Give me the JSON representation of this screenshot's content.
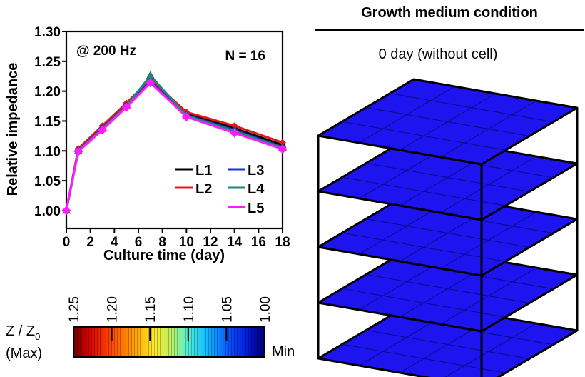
{
  "chart_data": [
    {
      "type": "line",
      "ylabel": "Relative impedance",
      "xlabel": "Culture time (day)",
      "annotations": [
        "@ 200 Hz",
        "N = 16"
      ],
      "x": [
        0,
        1,
        3,
        5,
        7,
        10,
        14,
        18
      ],
      "xticks": [
        "0",
        "2",
        "4",
        "6",
        "8",
        "10",
        "12",
        "14",
        "16",
        "18"
      ],
      "xlim": [
        0,
        18
      ],
      "yticks": [
        "1.00",
        "1.05",
        "1.10",
        "1.15",
        "1.20",
        "1.25",
        "1.30"
      ],
      "ylim": [
        0.97,
        1.3
      ],
      "grid": false,
      "legend_position": "bottom-right",
      "series": [
        {
          "name": "L1",
          "color": "#000000",
          "values": [
            1.0,
            1.103,
            1.14,
            1.178,
            1.218,
            1.163,
            1.138,
            1.11
          ]
        },
        {
          "name": "L2",
          "color": "#e8141c",
          "values": [
            1.0,
            1.104,
            1.142,
            1.18,
            1.22,
            1.165,
            1.142,
            1.114
          ]
        },
        {
          "name": "L3",
          "color": "#1f2fd6",
          "values": [
            1.0,
            1.101,
            1.138,
            1.176,
            1.216,
            1.16,
            1.135,
            1.106
          ]
        },
        {
          "name": "L4",
          "color": "#1a8a78",
          "values": [
            1.0,
            1.1,
            1.137,
            1.175,
            1.226,
            1.159,
            1.133,
            1.105
          ]
        },
        {
          "name": "L5",
          "color": "#ff1dff",
          "values": [
            1.0,
            1.099,
            1.135,
            1.173,
            1.214,
            1.157,
            1.13,
            1.103
          ]
        }
      ]
    },
    {
      "type": "heatmap",
      "title": "Growth medium condition",
      "subtitle": "0 day (without cell)",
      "layers": 5,
      "grid_size": [
        4,
        4
      ],
      "cell_color": "#1e14f0",
      "values": [
        1.0,
        1.0,
        1.0,
        1.0,
        1.0
      ]
    }
  ],
  "colorbar": {
    "label_main": "Z / Z",
    "label_sub": "0",
    "max_label": "(Max)",
    "min_label": "Min",
    "ticks": [
      "1.25",
      "1.20",
      "1.15",
      "1.10",
      "1.05",
      "1.00"
    ]
  }
}
